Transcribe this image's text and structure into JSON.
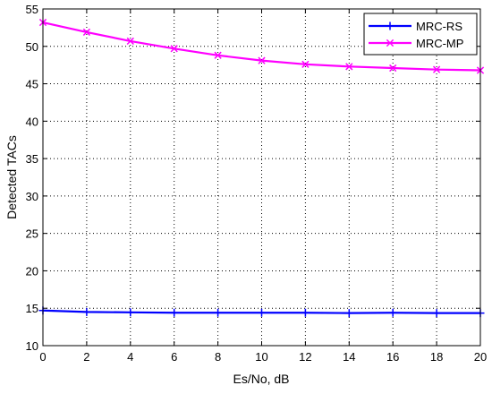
{
  "chart_data": {
    "type": "line",
    "title": "",
    "xlabel": "Es/No, dB",
    "ylabel": "Detected TACs",
    "xlim": [
      0,
      20
    ],
    "ylim": [
      10,
      55
    ],
    "xticks": [
      0,
      2,
      4,
      6,
      8,
      10,
      12,
      14,
      16,
      18,
      20
    ],
    "yticks": [
      10,
      15,
      20,
      25,
      30,
      35,
      40,
      45,
      50,
      55
    ],
    "grid": true,
    "legend_position": "top-right",
    "x": [
      0,
      2,
      4,
      6,
      8,
      10,
      12,
      14,
      16,
      18,
      20
    ],
    "series": [
      {
        "name": "MRC-RS",
        "marker": "plus",
        "color": "#0000ff",
        "values": [
          14.7,
          14.5,
          14.45,
          14.4,
          14.4,
          14.4,
          14.4,
          14.35,
          14.4,
          14.35,
          14.35
        ]
      },
      {
        "name": "MRC-MP",
        "marker": "x",
        "color": "#ff00ff",
        "values": [
          53.2,
          51.9,
          50.7,
          49.7,
          48.8,
          48.1,
          47.6,
          47.3,
          47.1,
          46.9,
          46.8
        ]
      }
    ]
  }
}
